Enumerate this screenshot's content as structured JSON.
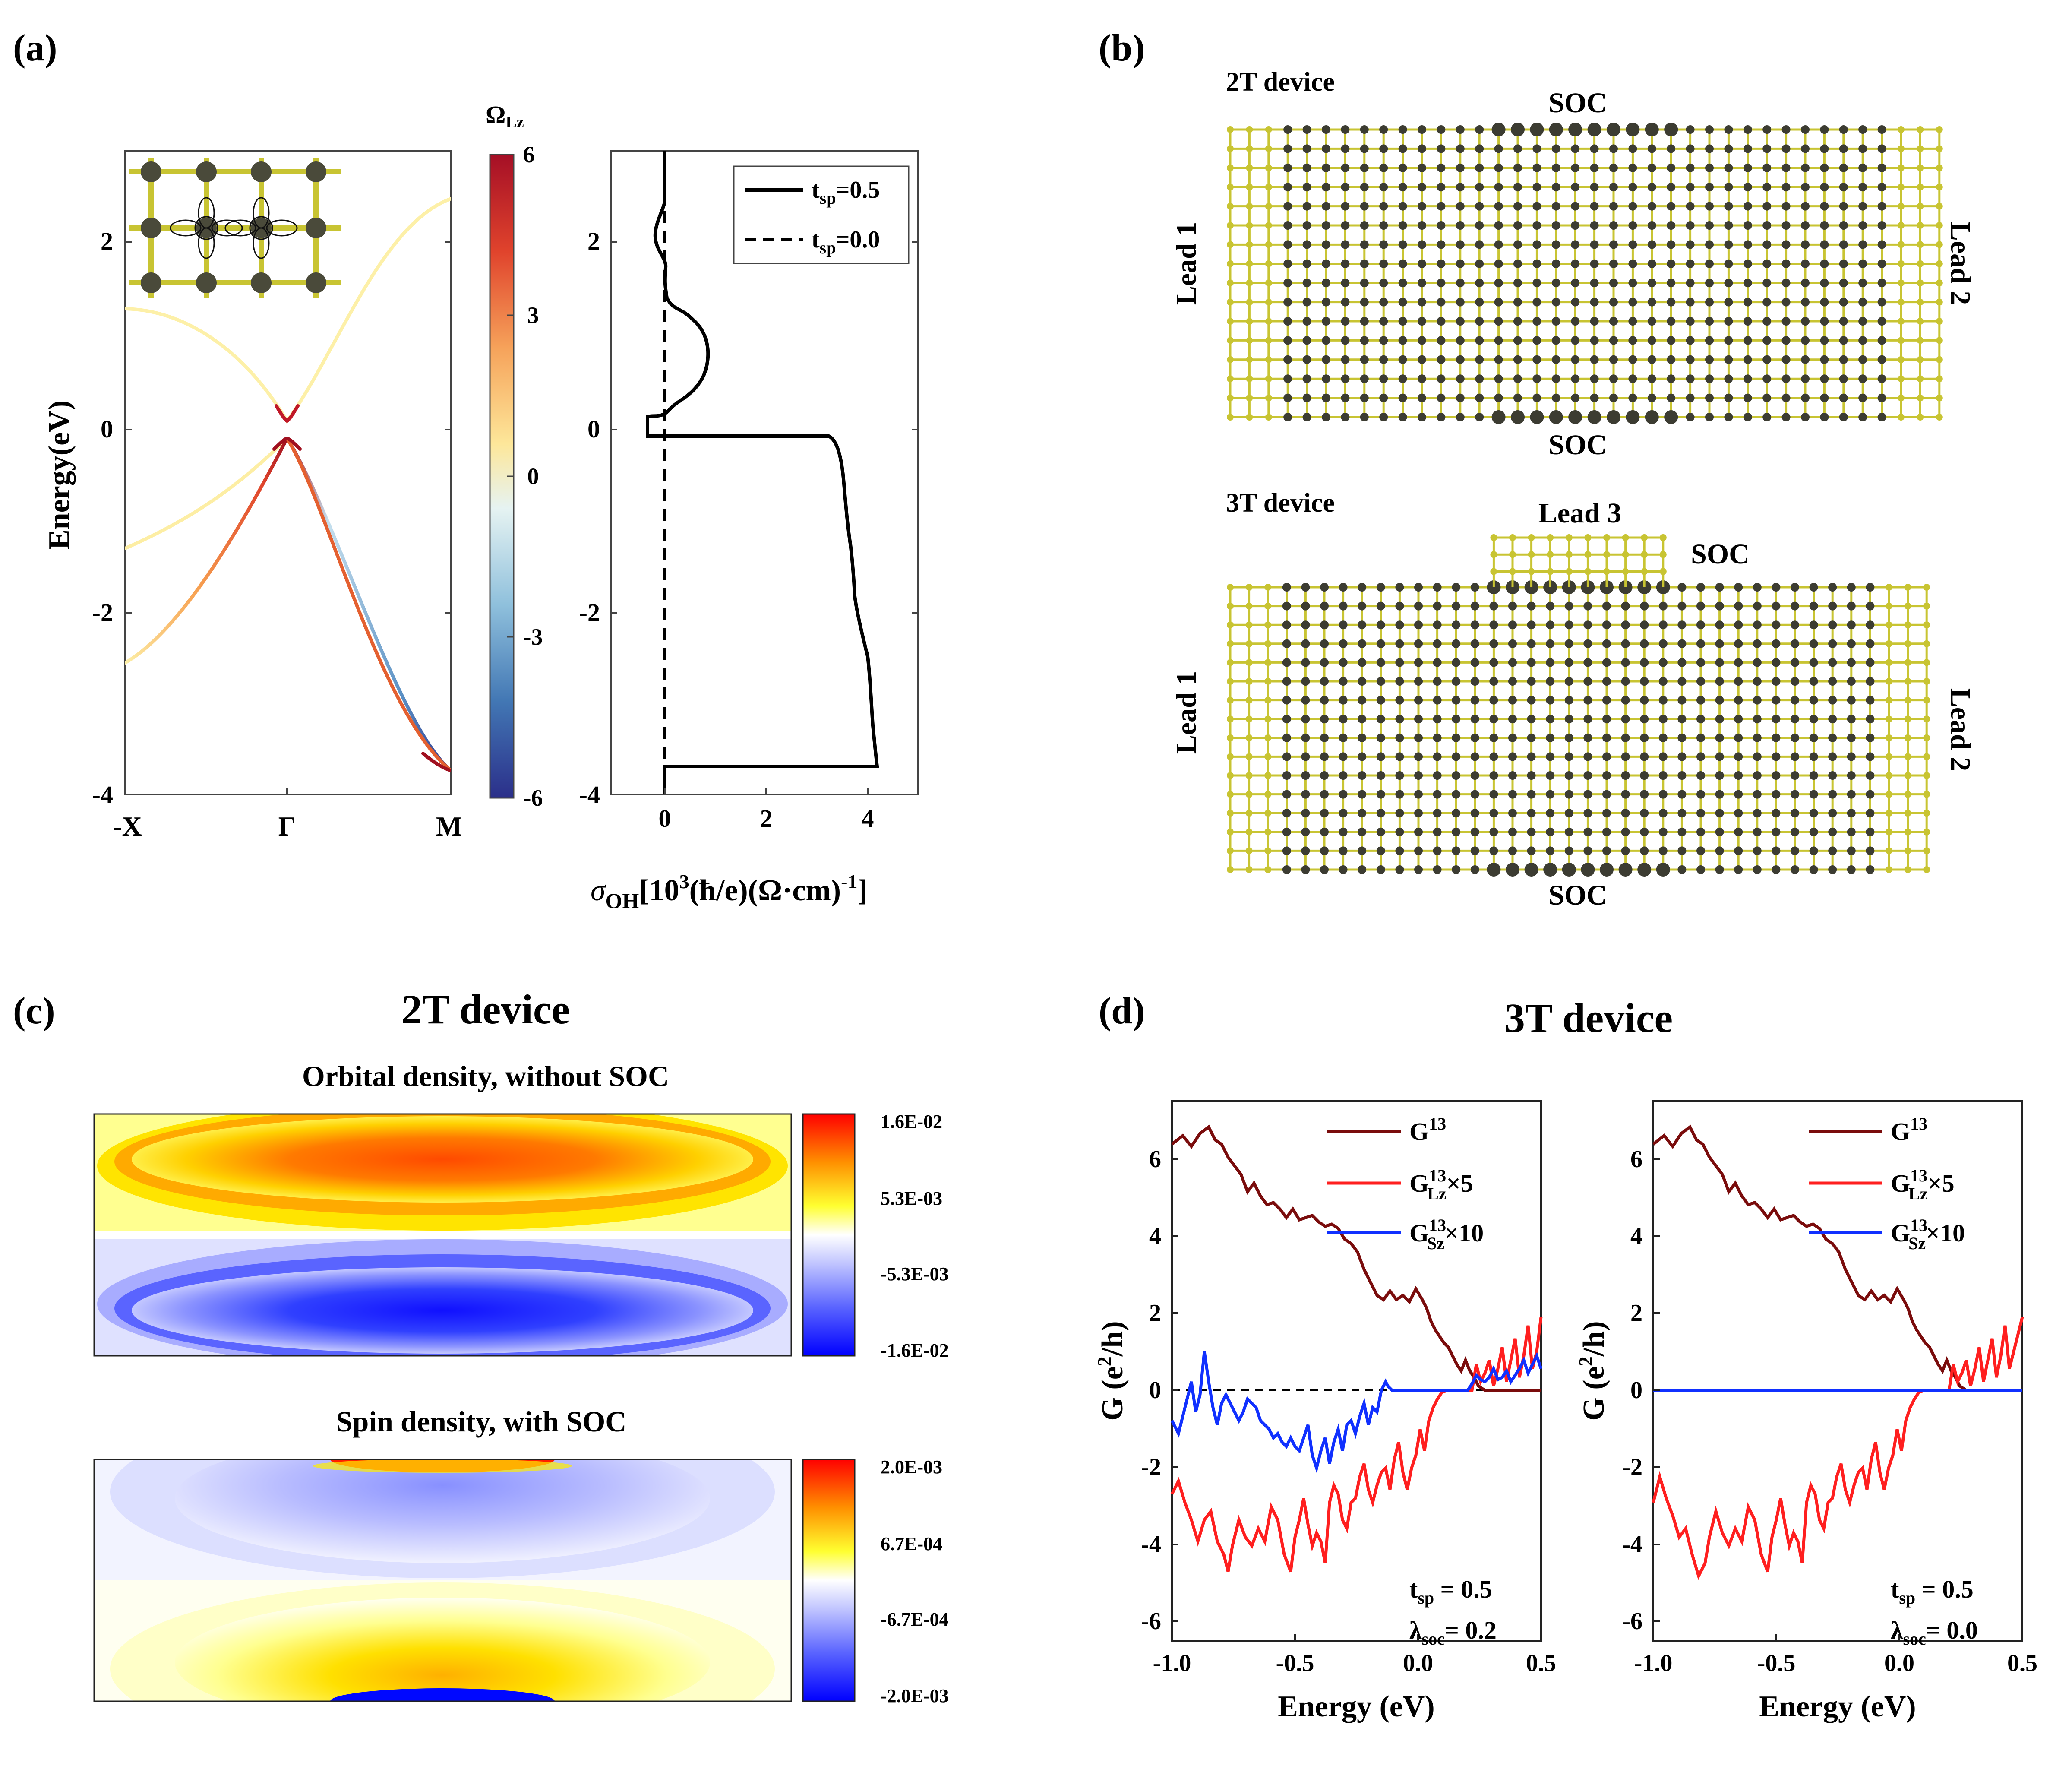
{
  "panel_labels": {
    "a": "(a)",
    "b": "(b)",
    "c": "(c)",
    "d": "(d)"
  },
  "colors": {
    "lattice": "#c8c432",
    "atom": "#3c3c32",
    "brown": "#7a0c0c",
    "red": "#ff1f1f",
    "blue": "#1030ff"
  },
  "panel_a": {
    "ylabel": "Energy(eV)",
    "colorbar_title": "Ω",
    "colorbar_title_sub": "Lz",
    "colorbar_ticks": [
      "6",
      "3",
      "0",
      "-3",
      "-6"
    ],
    "band_ticks_y": [
      "2",
      "0",
      "-2",
      "-4"
    ],
    "band_ticks_x": [
      "-X",
      "Γ",
      "M"
    ],
    "cond_ticks_y": [
      "2",
      "0",
      "-2",
      "-4"
    ],
    "cond_ticks_x": [
      "0",
      "2",
      "4"
    ],
    "legend": {
      "solid": "t",
      "solid_sub": "sp",
      "solid_val": "=0.5",
      "dashed": "t",
      "dashed_sub": "sp",
      "dashed_val": "=0.0"
    },
    "xlabel_parts": {
      "sigma": "σ",
      "sub": "OH",
      "b1": "[10",
      "sup1": "3",
      "b2": "(ħ/e)(Ω·cm)",
      "sup2": "-1",
      "b3": "]"
    }
  },
  "panel_b": {
    "title_2t": "2T device",
    "title_3t": "3T device",
    "soc": "SOC",
    "lead1": "Lead 1",
    "lead2": "Lead 2",
    "lead3": "Lead 3"
  },
  "panel_c": {
    "title": "2T device",
    "sub1": "Orbital density, without SOC",
    "sub2": "Spin density, with SOC",
    "cb1_ticks": [
      "1.6E-02",
      "5.3E-03",
      "-5.3E-03",
      "-1.6E-02"
    ],
    "cb2_ticks": [
      "2.0E-03",
      "6.7E-04",
      "-6.7E-04",
      "-2.0E-03"
    ]
  },
  "panel_d": {
    "title": "3T device",
    "ylabel_g": "G (e",
    "ylabel_sup": "2",
    "ylabel_end": "/h)",
    "xlabel": "Energy (eV)",
    "yticks": [
      "6",
      "4",
      "2",
      "0",
      "-2",
      "-4",
      "-6"
    ],
    "xticks": [
      "-1.0",
      "-0.5",
      "0.0",
      "0.5"
    ],
    "legend": [
      {
        "base": "G",
        "sup": "13",
        "sub": "",
        "suffix": ""
      },
      {
        "base": "G",
        "sup": "13",
        "sub": "Lz",
        "suffix": "×5"
      },
      {
        "base": "G",
        "sup": "13",
        "sub": "Sz",
        "suffix": "×10"
      }
    ],
    "left_params": {
      "t": "t",
      "t_sub": "sp",
      "t_val": " = 0.5",
      "l": "λ",
      "l_sub": "soc",
      "l_val": "= 0.2"
    },
    "right_params": {
      "t": "t",
      "t_sub": "sp",
      "t_val": " = 0.5",
      "l": "λ",
      "l_sub": "soc",
      "l_val": "= 0.0"
    }
  }
}
